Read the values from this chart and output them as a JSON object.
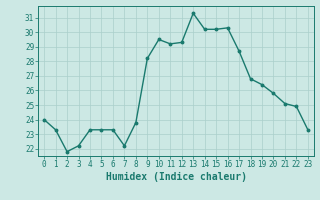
{
  "x": [
    0,
    1,
    2,
    3,
    4,
    5,
    6,
    7,
    8,
    9,
    10,
    11,
    12,
    13,
    14,
    15,
    16,
    17,
    18,
    19,
    20,
    21,
    22,
    23
  ],
  "y": [
    24,
    23.3,
    21.8,
    22.2,
    23.3,
    23.3,
    23.3,
    22.2,
    23.8,
    28.2,
    29.5,
    29.2,
    29.3,
    31.3,
    30.2,
    30.2,
    30.3,
    28.7,
    26.8,
    26.4,
    25.8,
    25.1,
    24.9,
    23.3
  ],
  "line_color": "#1a7a6e",
  "marker": "o",
  "markersize": 1.8,
  "linewidth": 1.0,
  "xlabel": "Humidex (Indice chaleur)",
  "xlabel_fontsize": 7,
  "xlabel_color": "#1a7a6e",
  "xlabel_bold": true,
  "ylim": [
    21.5,
    31.8
  ],
  "xlim": [
    -0.5,
    23.5
  ],
  "yticks": [
    22,
    23,
    24,
    25,
    26,
    27,
    28,
    29,
    30,
    31
  ],
  "xticks": [
    0,
    1,
    2,
    3,
    4,
    5,
    6,
    7,
    8,
    9,
    10,
    11,
    12,
    13,
    14,
    15,
    16,
    17,
    18,
    19,
    20,
    21,
    22,
    23
  ],
  "grid_color": "#aacfcb",
  "background_color": "#cce8e4",
  "tick_color": "#1a7a6e",
  "tick_fontsize": 5.5,
  "spine_color": "#1a7a6e"
}
